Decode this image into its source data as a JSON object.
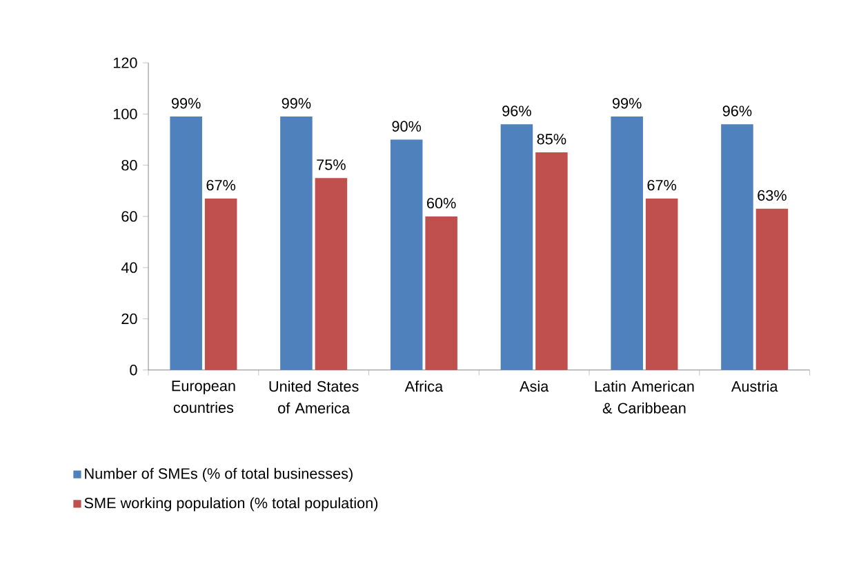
{
  "chart_data": {
    "type": "bar",
    "categories": [
      "European countries",
      "United States of America",
      "Africa",
      "Asia",
      "Latin American & Caribbean",
      "Austria"
    ],
    "series": [
      {
        "name": "Number of SMEs (% of total businesses)",
        "color": "#4f81bd",
        "values": [
          99,
          99,
          90,
          96,
          99,
          96
        ],
        "value_labels": [
          "99%",
          "99%",
          "90%",
          "96%",
          "99%",
          "96%"
        ]
      },
      {
        "name": "SME  working population (% total population)",
        "color": "#c0504d",
        "values": [
          67,
          75,
          60,
          85,
          67,
          63
        ],
        "value_labels": [
          "67%",
          "75%",
          "60%",
          "85%",
          "67%",
          "63%"
        ]
      }
    ],
    "ylim": [
      0,
      120
    ],
    "yticks": [
      0,
      20,
      40,
      60,
      80,
      100,
      120
    ],
    "grid": false,
    "legend": "bottom"
  }
}
